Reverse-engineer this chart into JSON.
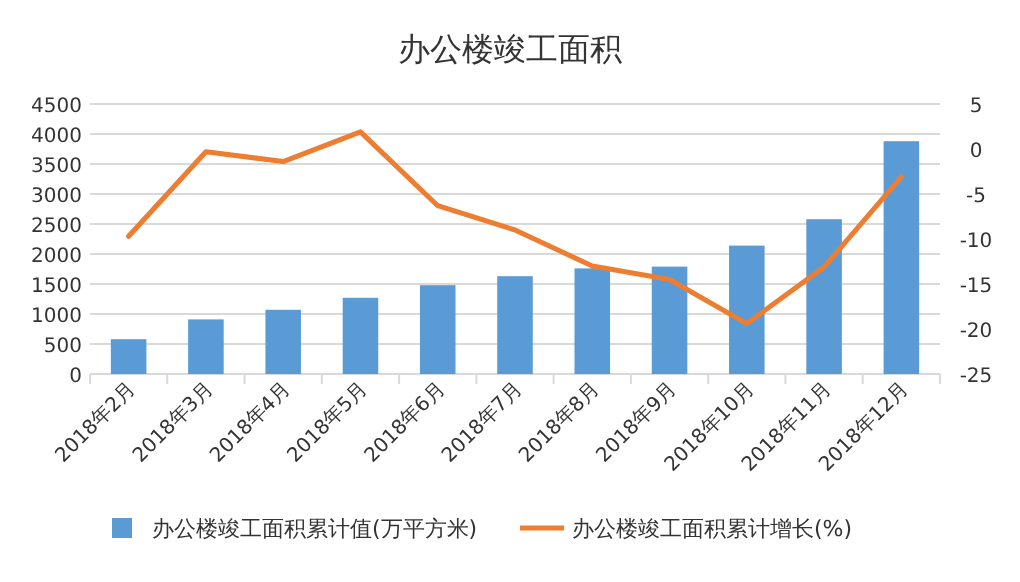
{
  "chart_data": {
    "type": "bar",
    "title": "办公楼竣工面积",
    "categories": [
      "2018年2月",
      "2018年3月",
      "2018年4月",
      "2018年5月",
      "2018年6月",
      "2018年7月",
      "2018年8月",
      "2018年9月",
      "2018年10月",
      "2018年11月",
      "2018年12月"
    ],
    "series": [
      {
        "name": "办公楼竣工面积累计值(万平方米)",
        "color": "#5b9bd5",
        "values": [
          580,
          910,
          1070,
          1270,
          1480,
          1630,
          1760,
          1790,
          2140,
          2580,
          3880
        ]
      },
      {
        "name": "办公楼竣工面积累计增长(%)",
        "type": "line",
        "axis": "y2",
        "color": "#ed7d31",
        "values": [
          -9.7,
          -0.3,
          -1.4,
          1.9,
          -6.3,
          -9,
          -13,
          -14.5,
          -19.4,
          -13.1,
          -3.1
        ]
      }
    ],
    "ylim": [
      0,
      4500
    ],
    "yticks": [
      0,
      500,
      1000,
      1500,
      2000,
      2500,
      3000,
      3500,
      4000,
      4500
    ],
    "y2lim": [
      -25,
      5
    ],
    "y2ticks": [
      -25,
      -20,
      -15,
      -10,
      -5,
      0,
      5
    ],
    "grid": "y",
    "legend": "bottom"
  }
}
